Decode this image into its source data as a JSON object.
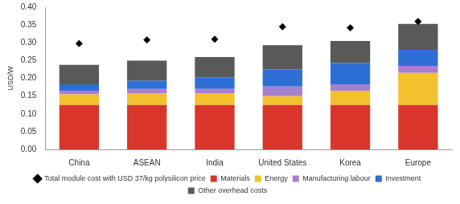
{
  "chart_data": {
    "type": "bar",
    "stacked": true,
    "grid": false,
    "legend": "bottom",
    "y_label": "USD/W",
    "categories": [
      "China",
      "ASEAN",
      "India",
      "United States",
      "Korea",
      "Europe"
    ],
    "ylim": [
      0,
      0.4
    ],
    "yticks": [
      {
        "value": 0,
        "label": "0.00"
      },
      {
        "value": 0.05,
        "label": "0.05"
      },
      {
        "value": 0.1,
        "label": "0.10"
      },
      {
        "value": 0.15,
        "label": "0.15"
      },
      {
        "value": 0.2,
        "label": "0.20"
      },
      {
        "value": 0.25,
        "label": "0.25"
      },
      {
        "value": 0.3,
        "label": "0.30"
      },
      {
        "value": 0.35,
        "label": "0.35"
      },
      {
        "value": 0.4,
        "label": "0.40"
      }
    ],
    "series": [
      {
        "name": "Materials",
        "color": "#d9352b",
        "values": [
          0.125,
          0.125,
          0.125,
          0.125,
          0.125,
          0.125
        ]
      },
      {
        "name": "Energy",
        "color": "#f2c12e",
        "values": [
          0.03,
          0.033,
          0.033,
          0.025,
          0.04,
          0.09
        ]
      },
      {
        "name": "Manufacturing labour",
        "color": "#a77fd1",
        "values": [
          0.01,
          0.012,
          0.012,
          0.027,
          0.018,
          0.02
        ]
      },
      {
        "name": "Investment",
        "color": "#2e6fd6",
        "values": [
          0.018,
          0.023,
          0.033,
          0.048,
          0.06,
          0.045
        ]
      },
      {
        "name": "Other overhead costs",
        "color": "#595959",
        "values": [
          0.055,
          0.057,
          0.057,
          0.068,
          0.062,
          0.073
        ]
      },
      {
        "name": "Total module cost with USD 37/kg polysilicon price",
        "color": "#000000",
        "type": "scatter",
        "marker": "diamond",
        "values": [
          0.298,
          0.308,
          0.31,
          0.345,
          0.342,
          0.36
        ]
      }
    ]
  }
}
